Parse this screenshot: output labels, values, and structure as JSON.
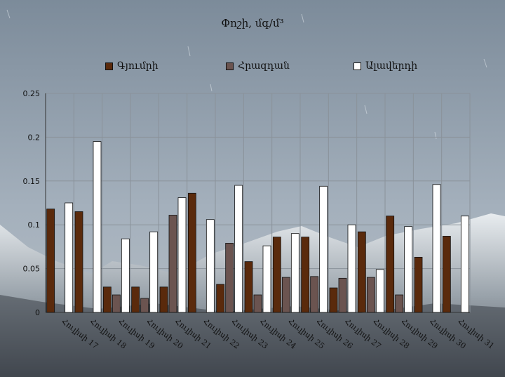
{
  "chart_data": {
    "type": "bar",
    "title": "Փոշի, մգ/մ³",
    "xlabel": "",
    "ylabel": "",
    "ylim": [
      0,
      0.25
    ],
    "yticks": [
      "0",
      "0.05",
      "0.1",
      "0.15",
      "0.2",
      "0.25"
    ],
    "ytick_values": [
      0,
      0.05,
      0.1,
      0.15,
      0.2,
      0.25
    ],
    "legend_position": "top",
    "grid": true,
    "categories": [
      "Հուլիսի 17",
      "Հուլիսի 18",
      "Հուլիսի 19",
      "Հուլիսի 20",
      "Հուլիսի 21",
      "Հուլիսի 22",
      "Հուլիսի 23",
      "Հուլիսի 24",
      "Հուլիսի 25",
      "Հուլիսի 26",
      "Հուլիսի 27",
      "Հուլիսի 28",
      "Հուլիսի 29",
      "Հուլիսի 30",
      "Հուլիսի 31"
    ],
    "series": [
      {
        "name": "Գյումրի",
        "color": "#5a2a0c",
        "values": [
          0.118,
          0.115,
          0.029,
          0.029,
          0.029,
          0.136,
          0.032,
          0.058,
          0.086,
          0.086,
          0.028,
          0.092,
          0.11,
          0.063,
          0.087
        ]
      },
      {
        "name": "Հրազդան",
        "color": "#6b5450",
        "values": [
          0,
          0,
          0.02,
          0.016,
          0.111,
          0,
          0.079,
          0.02,
          0.04,
          0.041,
          0.039,
          0.04,
          0.02,
          0,
          0
        ]
      },
      {
        "name": "Ալավերդի",
        "color": "#ffffff",
        "values": [
          0.125,
          0.195,
          0.084,
          0.092,
          0.131,
          0.106,
          0.145,
          0.076,
          0.09,
          0.144,
          0.1,
          0.049,
          0.098,
          0.146,
          0.11
        ]
      }
    ]
  }
}
